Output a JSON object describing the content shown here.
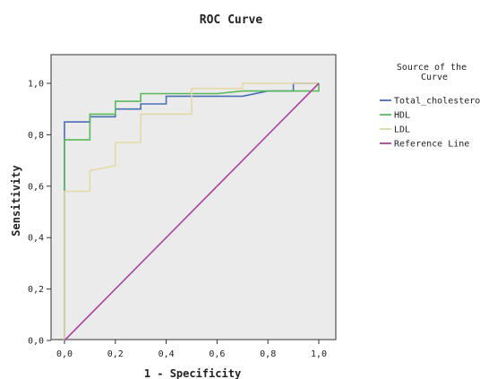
{
  "chart_data": {
    "type": "line",
    "title": "ROC Curve",
    "xlabel": "1 - Specificity",
    "ylabel": "Sensitivity",
    "xlim": [
      0,
      1
    ],
    "ylim": [
      0,
      1
    ],
    "x_ticks": [
      "0,0",
      "0,2",
      "0,4",
      "0,6",
      "0,8",
      "1,0"
    ],
    "y_ticks": [
      "0,0",
      "0,2",
      "0,4",
      "0,6",
      "0,8",
      "1,0"
    ],
    "grid": false,
    "plot_background": "#ebebeb",
    "legend": {
      "title": "Source of the Curve",
      "placement": "right",
      "entries": [
        "Total_cholestero",
        "HDL",
        "LDL",
        "Reference Line"
      ]
    },
    "series": [
      {
        "name": "Total_cholestero",
        "color": "#4a6fb5",
        "points": [
          [
            0,
            0
          ],
          [
            0,
            0.85
          ],
          [
            0.1,
            0.85
          ],
          [
            0.1,
            0.87
          ],
          [
            0.2,
            0.87
          ],
          [
            0.2,
            0.9
          ],
          [
            0.3,
            0.9
          ],
          [
            0.3,
            0.92
          ],
          [
            0.4,
            0.92
          ],
          [
            0.4,
            0.95
          ],
          [
            0.7,
            0.95
          ],
          [
            0.8,
            0.97
          ],
          [
            0.9,
            0.97
          ],
          [
            0.9,
            1.0
          ],
          [
            1.0,
            1.0
          ]
        ]
      },
      {
        "name": "HDL",
        "color": "#5aba5a",
        "points": [
          [
            0,
            0
          ],
          [
            0,
            0.59
          ],
          [
            0,
            0.78
          ],
          [
            0.1,
            0.78
          ],
          [
            0.1,
            0.88
          ],
          [
            0.2,
            0.88
          ],
          [
            0.2,
            0.93
          ],
          [
            0.3,
            0.93
          ],
          [
            0.3,
            0.96
          ],
          [
            0.4,
            0.96
          ],
          [
            0.6,
            0.96
          ],
          [
            0.7,
            0.97
          ],
          [
            1.0,
            0.97
          ],
          [
            1.0,
            1.0
          ]
        ]
      },
      {
        "name": "LDL",
        "color": "#e3d9a6",
        "points": [
          [
            0,
            0
          ],
          [
            0,
            0.58
          ],
          [
            0.1,
            0.58
          ],
          [
            0.1,
            0.66
          ],
          [
            0.2,
            0.68
          ],
          [
            0.2,
            0.77
          ],
          [
            0.3,
            0.77
          ],
          [
            0.3,
            0.88
          ],
          [
            0.5,
            0.88
          ],
          [
            0.5,
            0.98
          ],
          [
            0.7,
            0.98
          ],
          [
            0.7,
            1.0
          ],
          [
            1.0,
            1.0
          ]
        ]
      },
      {
        "name": "Reference Line",
        "color": "#a8449e",
        "points": [
          [
            0,
            0
          ],
          [
            1,
            1
          ]
        ]
      }
    ]
  }
}
